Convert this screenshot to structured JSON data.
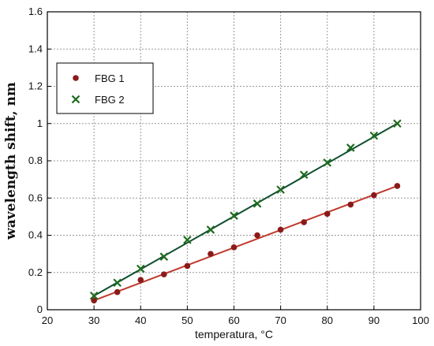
{
  "chart_data": {
    "type": "scatter",
    "xlabel": "temperatura, °C",
    "ylabel": "wavelength shift, nm",
    "xlim": [
      20,
      100
    ],
    "ylim": [
      0,
      1.6
    ],
    "x_ticks": [
      "20",
      "30",
      "40",
      "50",
      "60",
      "70",
      "80",
      "90",
      "100"
    ],
    "y_ticks": [
      "0",
      "0.2",
      "0.4",
      "0.6",
      "0.8",
      "1",
      "1.2",
      "1.4",
      "1.6"
    ],
    "grid": true,
    "legend_position": "upper-left",
    "x": [
      30,
      35,
      40,
      45,
      50,
      55,
      60,
      65,
      70,
      75,
      80,
      85,
      90,
      95
    ],
    "series": [
      {
        "name": "FBG 1",
        "color": "#8b1a1a",
        "line_color": "#c0392b",
        "marker": "circle",
        "values": [
          0.05,
          0.095,
          0.16,
          0.19,
          0.235,
          0.3,
          0.335,
          0.4,
          0.43,
          0.47,
          0.515,
          0.565,
          0.615,
          0.665
        ],
        "fit": [
          0.05,
          0.665
        ]
      },
      {
        "name": "FBG 2",
        "color": "#1e6b1e",
        "line_color": "#0f4f2e",
        "marker": "x",
        "values": [
          0.075,
          0.145,
          0.22,
          0.285,
          0.375,
          0.43,
          0.505,
          0.57,
          0.645,
          0.725,
          0.79,
          0.87,
          0.935,
          1.0
        ],
        "fit": [
          0.075,
          1.0
        ]
      }
    ]
  }
}
